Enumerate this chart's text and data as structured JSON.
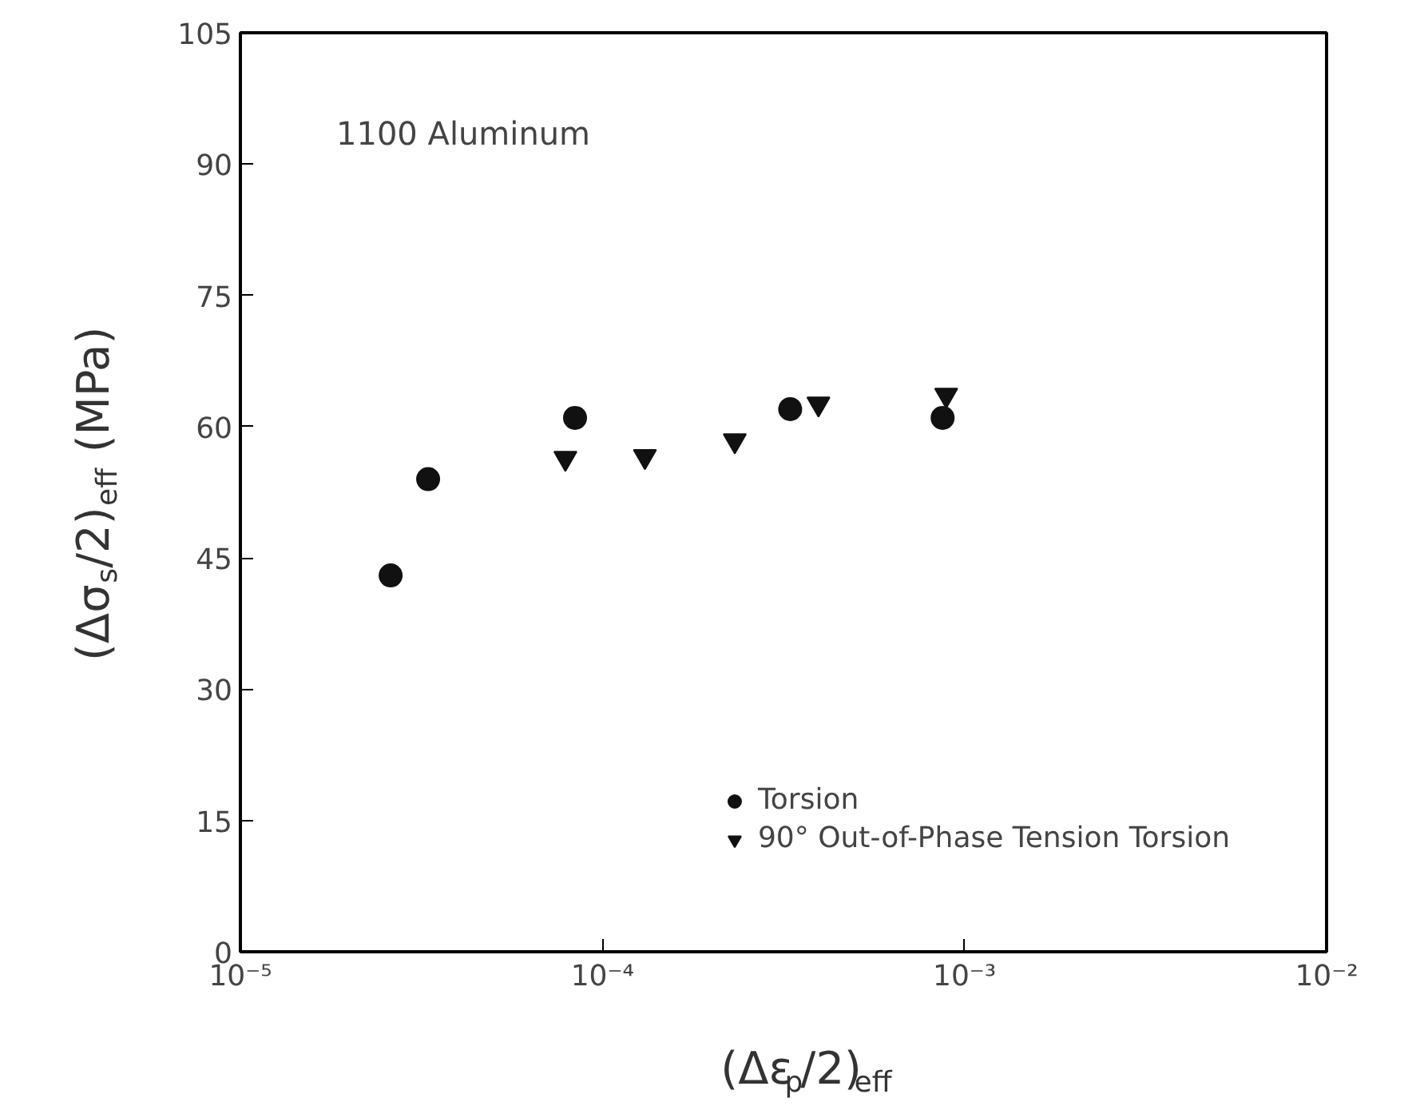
{
  "chart_data": {
    "type": "scatter",
    "xlabel": "(Δε$_{p}$/2)$_{eff}$",
    "ylabel": "(Δσ$_{s}$/2)$_{eff}$ (MPa)",
    "annotations": [
      "1100 Aluminum"
    ],
    "log": "x",
    "xlim": [
      1e-05,
      0.01
    ],
    "ylim": [
      0,
      105
    ],
    "xticks": [
      {
        "value": 1e-05,
        "label": "10⁻⁵"
      },
      {
        "value": 0.0001,
        "label": "10⁻⁴"
      },
      {
        "value": 0.001,
        "label": "10⁻³"
      },
      {
        "value": 0.01,
        "label": "10⁻²"
      }
    ],
    "yticks": [
      0,
      15,
      30,
      45,
      60,
      75,
      90,
      105
    ],
    "grid": false,
    "legend": "bottom right",
    "series": [
      {
        "name": "Torsion",
        "color": "#111111",
        "marker": "circle",
        "x": [
          2.6e-05,
          3.3e-05,
          8.4e-05,
          0.00033,
          0.00087
        ],
        "values": [
          43,
          54,
          61,
          62,
          61
        ]
      },
      {
        "name": "90° Out-of-Phase Tension Torsion",
        "color": "#111111",
        "marker": "triangle",
        "x": [
          7.9e-05,
          0.000131,
          0.000232,
          0.000395,
          0.00089
        ],
        "values": [
          56.4,
          56.6,
          58.4,
          62.6,
          63.6
        ]
      }
    ]
  }
}
